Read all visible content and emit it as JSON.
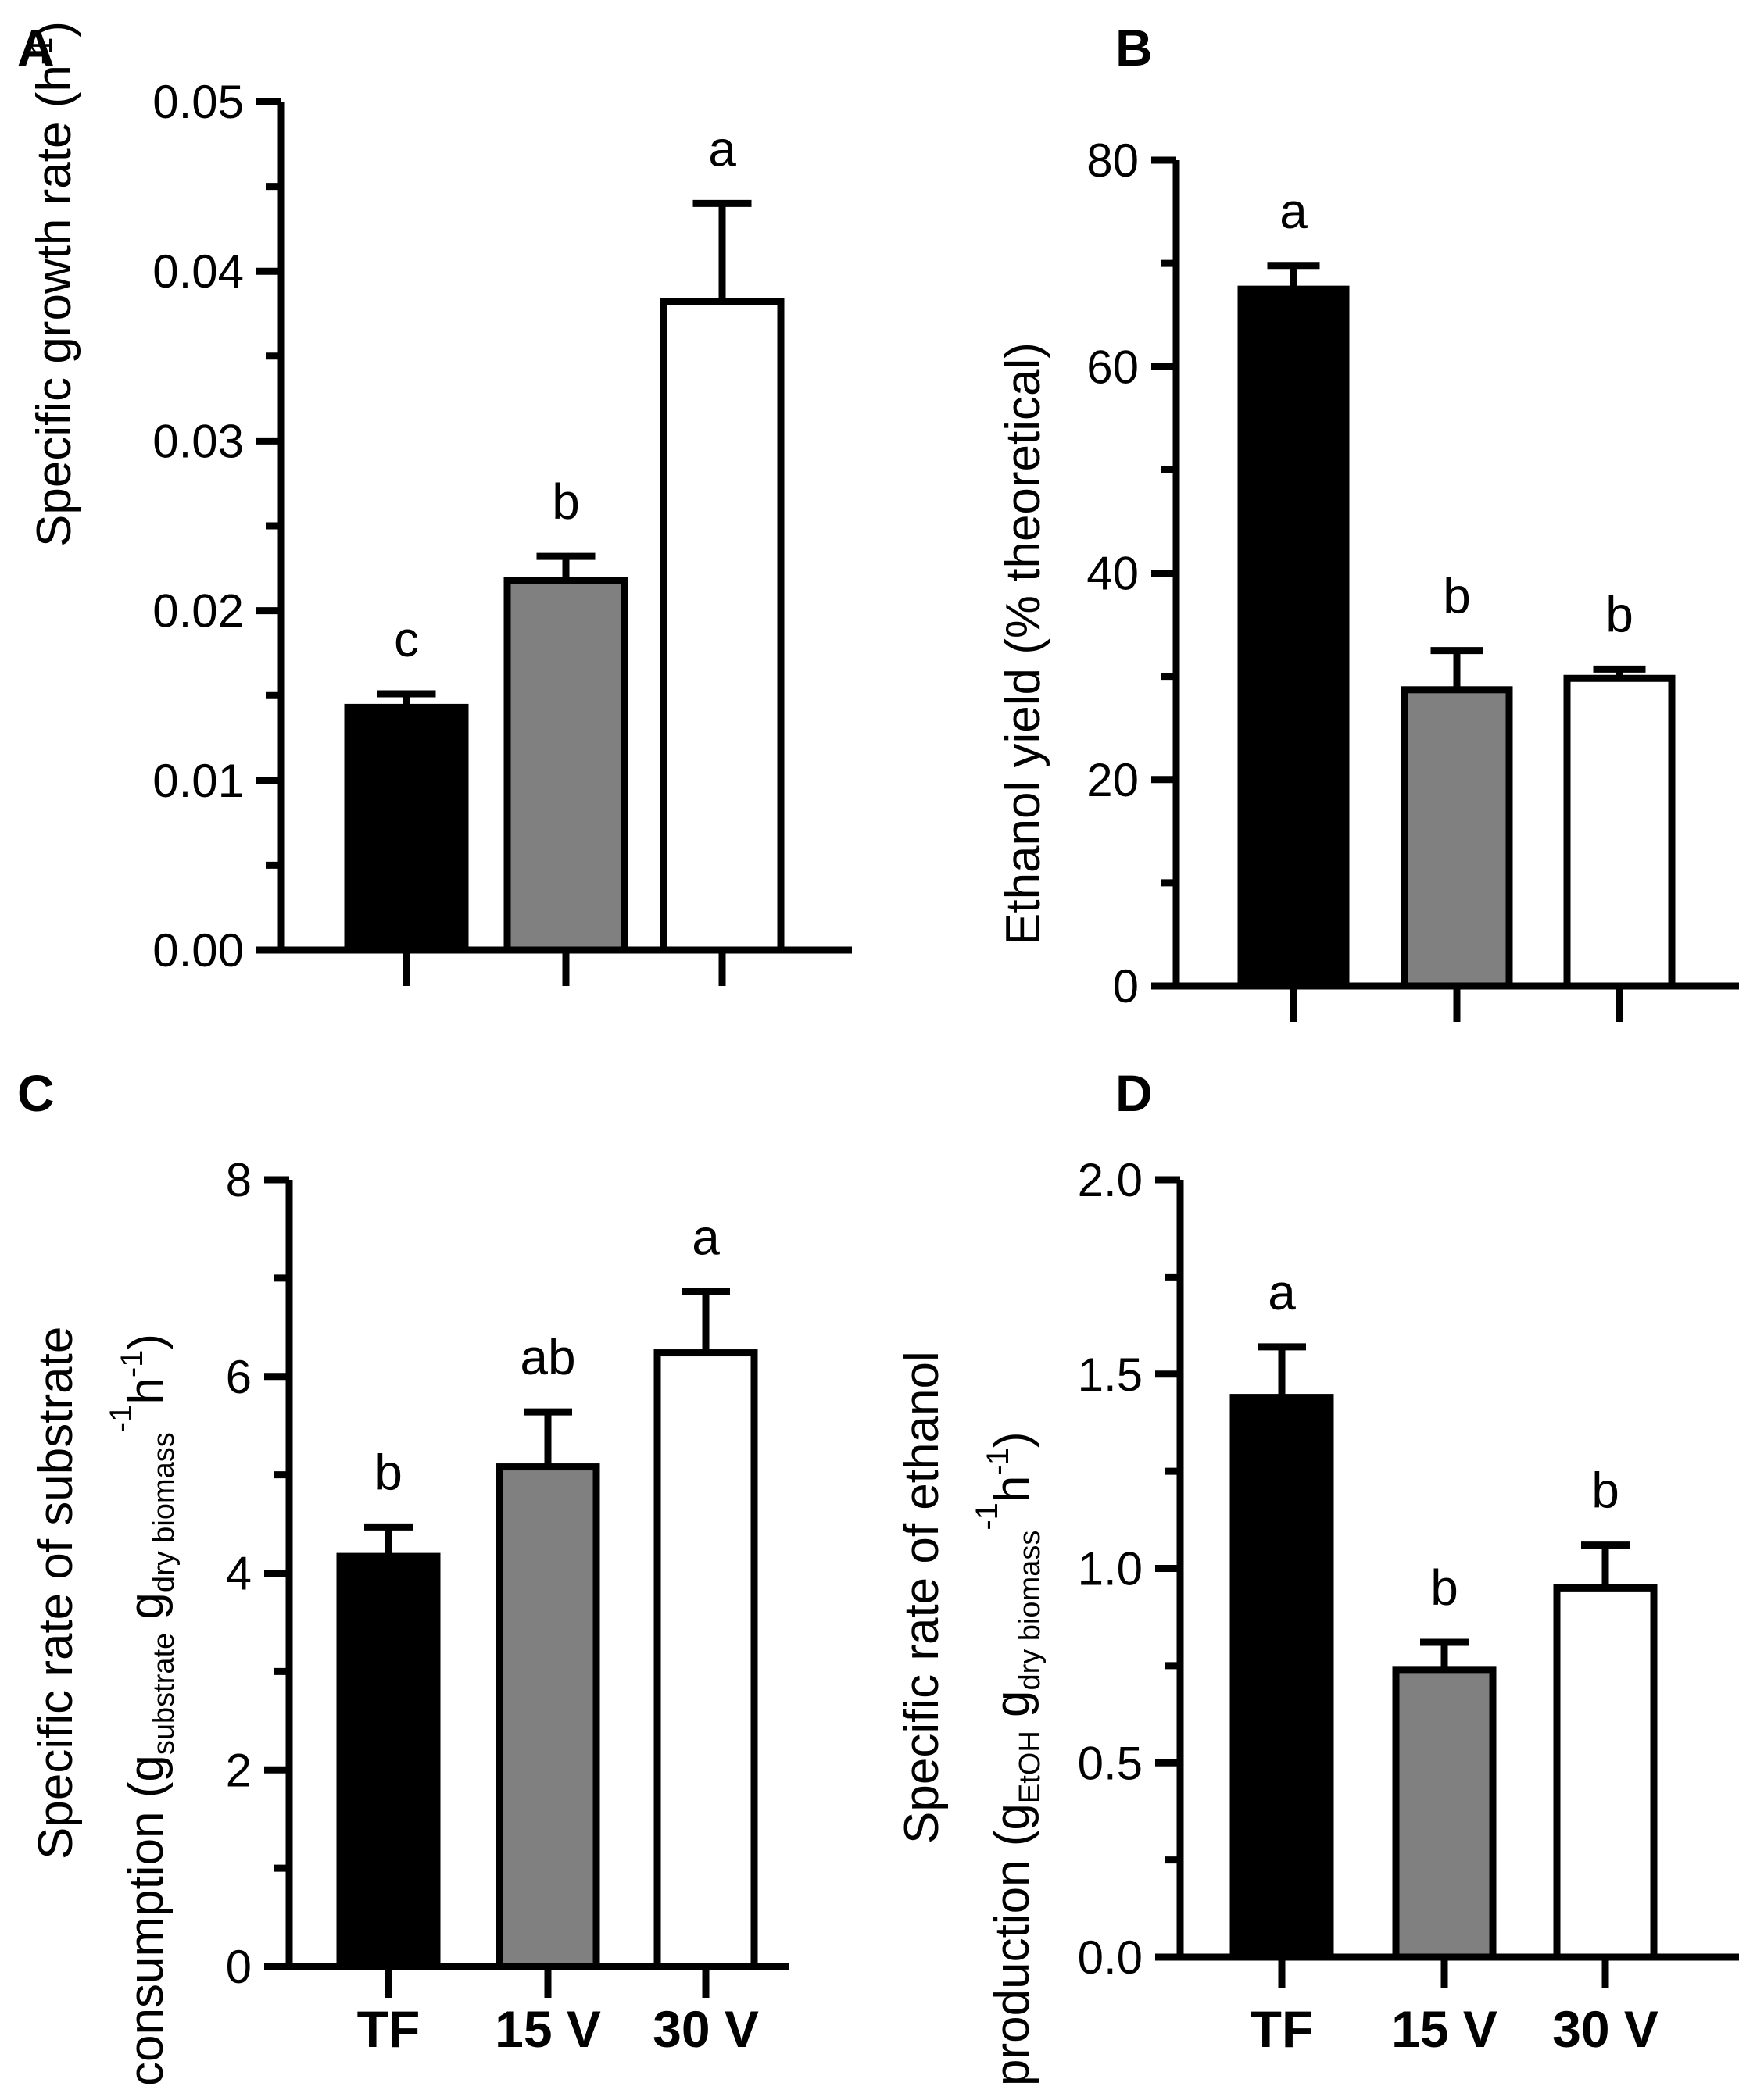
{
  "colors": {
    "TF": "#000000",
    "15 V": "#808080",
    "30 V": "#ffffff",
    "axis": "#000000"
  },
  "chart_data": [
    {
      "panel": "A",
      "type": "bar",
      "categories": [
        "TF",
        "15 V",
        "30 V"
      ],
      "values": [
        0.0143,
        0.0218,
        0.0382
      ],
      "errors": [
        0.0008,
        0.0014,
        0.0058
      ],
      "significance": [
        "c",
        "b",
        "a"
      ],
      "ylabel_main": "Specific growth rate (h",
      "ylabel_sup": "-1",
      "ylabel_end": ")",
      "ylim": [
        0,
        0.05
      ],
      "yticks": [
        "0.00",
        "0.01",
        "0.02",
        "0.03",
        "0.04",
        "0.05"
      ],
      "show_category_labels": false
    },
    {
      "panel": "B",
      "type": "bar",
      "categories": [
        "TF",
        "15 V",
        "30 V"
      ],
      "values": [
        67.5,
        28.7,
        29.8
      ],
      "errors": [
        2.3,
        3.8,
        0.9
      ],
      "significance": [
        "a",
        "b",
        "b"
      ],
      "ylabel": "Ethanol yield (% theoretical)",
      "ylim": [
        0,
        80
      ],
      "yticks": [
        "0",
        "20",
        "40",
        "60",
        "80"
      ],
      "show_category_labels": false
    },
    {
      "panel": "C",
      "type": "bar",
      "categories": [
        "TF",
        "15 V",
        "30 V"
      ],
      "values": [
        4.17,
        5.08,
        6.24
      ],
      "errors": [
        0.3,
        0.56,
        0.62
      ],
      "significance": [
        "b",
        "ab",
        "a"
      ],
      "ylabel_line1": "Specific rate of substrate",
      "ylabel_line2_pre": "consumption (g",
      "ylabel_line2_sub1": "substrate",
      "ylabel_line2_mid": " g",
      "ylabel_line2_sub2": "dry biomass",
      "ylabel_line2_sup1": "-1",
      "ylabel_line2_h": "h",
      "ylabel_line2_sup2": "-1",
      "ylabel_line2_end": ")",
      "ylim": [
        0,
        8
      ],
      "yticks": [
        "0",
        "2",
        "4",
        "6",
        "8"
      ],
      "show_category_labels": true
    },
    {
      "panel": "D",
      "type": "bar",
      "categories": [
        "TF",
        "15 V",
        "30 V"
      ],
      "values": [
        1.44,
        0.74,
        0.95
      ],
      "errors": [
        0.13,
        0.07,
        0.11
      ],
      "significance": [
        "a",
        "b",
        "b"
      ],
      "ylabel_line1": "Specific rate of ethanol",
      "ylabel_line2_pre": "production (g",
      "ylabel_line2_sub1": "EtOH",
      "ylabel_line2_mid": " g",
      "ylabel_line2_sub2": "dry biomass",
      "ylabel_line2_sup1": "-1",
      "ylabel_line2_h": "h",
      "ylabel_line2_sup2": "-1",
      "ylabel_line2_end": ")",
      "ylim": [
        0,
        2.0
      ],
      "yticks": [
        "0.0",
        "0.5",
        "1.0",
        "1.5",
        "2.0"
      ],
      "show_category_labels": true
    }
  ]
}
